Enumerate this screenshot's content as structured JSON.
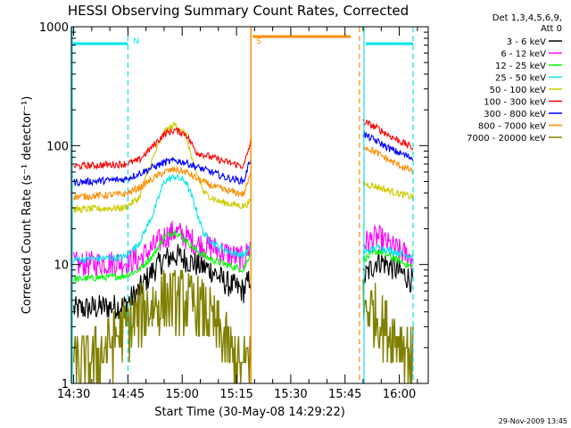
{
  "chart_data": {
    "type": "line",
    "title": "HESSI Observing Summary Count Rates, Corrected",
    "xlabel": "Start Time (30-May-08 14:29:22)",
    "ylabel": "Corrected Count Rate (s⁻¹ detector⁻¹)",
    "y_scale": "log",
    "ylim": [
      1,
      1000
    ],
    "xlim": [
      "14:29:22",
      "16:08"
    ],
    "x_ticks": [
      "14:30",
      "14:45",
      "15:00",
      "15:15",
      "15:30",
      "15:45",
      "16:00"
    ],
    "y_ticks": [
      "1",
      "10",
      "100",
      "1000"
    ],
    "grid": false,
    "legend_position": "right",
    "legend_header": [
      "Det 1,3,4,5,6,9,",
      "Att 0"
    ],
    "footer_date": "29-Nov-2009 13:45",
    "data_gap": [
      "15:19",
      "15:49"
    ],
    "markers": [
      {
        "label": "N",
        "time": "14:45",
        "color": "#00e5ee",
        "style": "dashed"
      },
      {
        "label": "S",
        "time": "15:19",
        "color": "#ff8c00",
        "style": "solid"
      }
    ],
    "series": [
      {
        "name": "3 - 6 keV",
        "color": "#000000",
        "values": [
          [
            "14:30",
            4.2
          ],
          [
            "14:44",
            4.5
          ],
          [
            "14:48",
            6
          ],
          [
            "14:52",
            9
          ],
          [
            "14:55",
            11
          ],
          [
            "14:58",
            12
          ],
          [
            "15:01",
            11
          ],
          [
            "15:04",
            10
          ],
          [
            "15:08",
            9
          ],
          [
            "15:12",
            7
          ],
          [
            "15:17",
            6
          ],
          [
            "15:19",
            8
          ],
          [
            "15:50",
            7.5
          ],
          [
            "15:54",
            11
          ],
          [
            "15:58",
            9.5
          ],
          [
            "16:02",
            8
          ],
          [
            "16:04",
            7
          ]
        ]
      },
      {
        "name": "6 - 12 keV",
        "color": "#ff00ff",
        "values": [
          [
            "14:30",
            10
          ],
          [
            "14:44",
            10.5
          ],
          [
            "14:48",
            11
          ],
          [
            "14:52",
            14
          ],
          [
            "14:55",
            17
          ],
          [
            "14:58",
            19
          ],
          [
            "15:01",
            17
          ],
          [
            "15:04",
            15
          ],
          [
            "15:08",
            14
          ],
          [
            "15:12",
            12.5
          ],
          [
            "15:17",
            11
          ],
          [
            "15:19",
            15
          ],
          [
            "15:50",
            15
          ],
          [
            "15:54",
            17
          ],
          [
            "15:58",
            14
          ],
          [
            "16:02",
            12
          ],
          [
            "16:04",
            11
          ]
        ]
      },
      {
        "name": "12 - 25 keV",
        "color": "#00ff00",
        "values": [
          [
            "14:30",
            7.5
          ],
          [
            "14:44",
            8
          ],
          [
            "14:48",
            9
          ],
          [
            "14:52",
            12
          ],
          [
            "14:55",
            17
          ],
          [
            "14:58",
            19
          ],
          [
            "15:01",
            16
          ],
          [
            "15:04",
            13
          ],
          [
            "15:08",
            11
          ],
          [
            "15:12",
            10
          ],
          [
            "15:17",
            9
          ],
          [
            "15:19",
            13
          ],
          [
            "15:50",
            11
          ],
          [
            "15:54",
            13
          ],
          [
            "15:58",
            11.5
          ],
          [
            "16:02",
            10
          ],
          [
            "16:04",
            9.5
          ]
        ]
      },
      {
        "name": "25 - 50 keV",
        "color": "#00e5ee",
        "values": [
          [
            "14:30",
            11
          ],
          [
            "14:44",
            11.5
          ],
          [
            "14:48",
            15
          ],
          [
            "14:52",
            27
          ],
          [
            "14:55",
            50
          ],
          [
            "14:58",
            55
          ],
          [
            "15:01",
            50
          ],
          [
            "15:03",
            35
          ],
          [
            "15:06",
            18
          ],
          [
            "15:10",
            14
          ],
          [
            "15:14",
            12.5
          ],
          [
            "15:17",
            12
          ],
          [
            "15:19",
            14
          ],
          [
            "15:50",
            12.5
          ],
          [
            "15:54",
            14
          ],
          [
            "15:58",
            13
          ],
          [
            "16:02",
            12
          ],
          [
            "16:04",
            12
          ]
        ]
      },
      {
        "name": "50 - 100 keV",
        "color": "#cccc00",
        "values": [
          [
            "14:30",
            29
          ],
          [
            "14:44",
            30
          ],
          [
            "14:48",
            36
          ],
          [
            "14:52",
            80
          ],
          [
            "14:55",
            130
          ],
          [
            "14:58",
            150
          ],
          [
            "15:01",
            125
          ],
          [
            "15:03",
            70
          ],
          [
            "15:06",
            40
          ],
          [
            "15:10",
            34
          ],
          [
            "15:14",
            32
          ],
          [
            "15:17",
            31
          ],
          [
            "15:19",
            34
          ],
          [
            "15:50",
            48
          ],
          [
            "15:54",
            45
          ],
          [
            "15:58",
            41
          ],
          [
            "16:02",
            38
          ],
          [
            "16:04",
            37
          ]
        ]
      },
      {
        "name": "100 - 300 keV",
        "color": "#ff0000",
        "values": [
          [
            "14:30",
            67
          ],
          [
            "14:44",
            70
          ],
          [
            "14:48",
            75
          ],
          [
            "14:52",
            100
          ],
          [
            "14:55",
            125
          ],
          [
            "14:58",
            135
          ],
          [
            "15:01",
            125
          ],
          [
            "15:04",
            88
          ],
          [
            "15:08",
            80
          ],
          [
            "15:12",
            73
          ],
          [
            "15:17",
            67
          ],
          [
            "15:19",
            110
          ],
          [
            "15:50",
            160
          ],
          [
            "15:54",
            140
          ],
          [
            "15:58",
            118
          ],
          [
            "16:02",
            102
          ],
          [
            "16:04",
            95
          ]
        ]
      },
      {
        "name": "300 - 800 keV",
        "color": "#0000ff",
        "values": [
          [
            "14:30",
            49
          ],
          [
            "14:44",
            52
          ],
          [
            "14:48",
            58
          ],
          [
            "14:52",
            66
          ],
          [
            "14:55",
            72
          ],
          [
            "14:58",
            75
          ],
          [
            "15:01",
            72
          ],
          [
            "15:04",
            66
          ],
          [
            "15:08",
            60
          ],
          [
            "15:12",
            54
          ],
          [
            "15:17",
            50
          ],
          [
            "15:19",
            80
          ],
          [
            "15:50",
            125
          ],
          [
            "15:54",
            108
          ],
          [
            "15:58",
            92
          ],
          [
            "16:02",
            82
          ],
          [
            "16:04",
            78
          ]
        ]
      },
      {
        "name": "800 - 7000 keV",
        "color": "#ff8c00",
        "values": [
          [
            "14:30",
            37
          ],
          [
            "14:44",
            39
          ],
          [
            "14:48",
            44
          ],
          [
            "14:52",
            53
          ],
          [
            "14:55",
            60
          ],
          [
            "14:58",
            63
          ],
          [
            "15:01",
            60
          ],
          [
            "15:04",
            53
          ],
          [
            "15:08",
            46
          ],
          [
            "15:12",
            42
          ],
          [
            "15:17",
            39
          ],
          [
            "15:19",
            58
          ],
          [
            "15:50",
            100
          ],
          [
            "15:54",
            86
          ],
          [
            "15:58",
            73
          ],
          [
            "16:02",
            64
          ],
          [
            "16:04",
            60
          ]
        ]
      },
      {
        "name": "7000 - 20000 keV",
        "color": "#808000",
        "values": [
          [
            "14:30",
            1.3
          ],
          [
            "14:38",
            1.8
          ],
          [
            "14:42",
            2.5
          ],
          [
            "14:45",
            3
          ],
          [
            "14:49",
            4
          ],
          [
            "14:52",
            4.5
          ],
          [
            "14:56",
            5
          ],
          [
            "15:00",
            5
          ],
          [
            "15:03",
            4.5
          ],
          [
            "15:06",
            4
          ],
          [
            "15:09",
            3
          ],
          [
            "15:12",
            2.2
          ],
          [
            "15:15",
            1.5
          ],
          [
            "15:17",
            1.3
          ],
          [
            "15:19",
            2
          ],
          [
            "15:50",
            4.5
          ],
          [
            "15:53",
            4
          ],
          [
            "15:56",
            3
          ],
          [
            "15:59",
            2.5
          ],
          [
            "16:02",
            2
          ],
          [
            "16:04",
            1.5
          ]
        ]
      }
    ]
  }
}
